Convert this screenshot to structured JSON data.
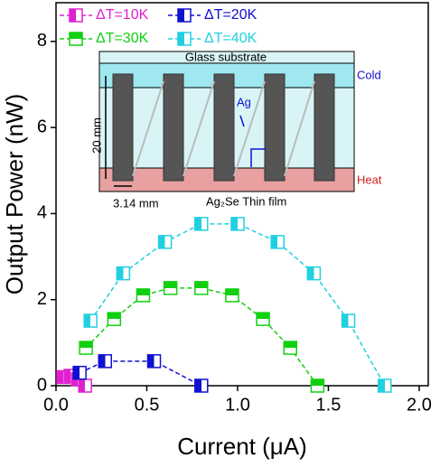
{
  "chart_data": {
    "type": "line",
    "x_label": "Current (μA)",
    "y_label": "Output Power (nW)",
    "xlim": [
      0,
      2.05
    ],
    "ylim": [
      0,
      8.9
    ],
    "xticks": [
      {
        "value": 0,
        "label": "0.0"
      },
      {
        "value": 0.5,
        "label": "0.5"
      },
      {
        "value": 1,
        "label": "1.0"
      },
      {
        "value": 1.5,
        "label": "1.5"
      },
      {
        "value": 2,
        "label": "2.0"
      }
    ],
    "yticks": [
      0,
      2,
      4,
      6,
      8
    ],
    "legend": "upper left",
    "series": [
      {
        "name": "ΔT=10K",
        "color": "#e020d0",
        "marker_half": "left",
        "x": [
          0.04,
          0.08,
          0.12,
          0.16
        ],
        "values": [
          0.2,
          0.23,
          0.15,
          0
        ]
      },
      {
        "name": "ΔT=20K",
        "color": "#1010d0",
        "marker_half": "left",
        "x": [
          0.13,
          0.27,
          0.54,
          0.8
        ],
        "values": [
          0.3,
          0.57,
          0.57,
          0
        ]
      },
      {
        "name": "ΔT=30K",
        "color": "#10d010",
        "marker_half": "top",
        "x": [
          0.165,
          0.32,
          0.48,
          0.63,
          0.8,
          0.97,
          1.14,
          1.29,
          1.44
        ],
        "values": [
          0.88,
          1.55,
          2.1,
          2.27,
          2.27,
          2.1,
          1.55,
          0.88,
          0
        ]
      },
      {
        "name": "ΔT=40K",
        "color": "#20d0e0",
        "marker_half": "left",
        "x": [
          0.19,
          0.37,
          0.6,
          0.8,
          1.0,
          1.22,
          1.42,
          1.61,
          1.81
        ],
        "values": [
          1.51,
          2.61,
          3.34,
          3.76,
          3.76,
          3.34,
          2.61,
          1.51,
          0
        ]
      }
    ]
  },
  "inset": {
    "substrate": "Glass substrate",
    "cold": "Cold",
    "electrode": "Ag",
    "height": "20 mm",
    "heat": "Heat",
    "width": "3.14 mm",
    "film": "Ag₂Se Thin film"
  }
}
